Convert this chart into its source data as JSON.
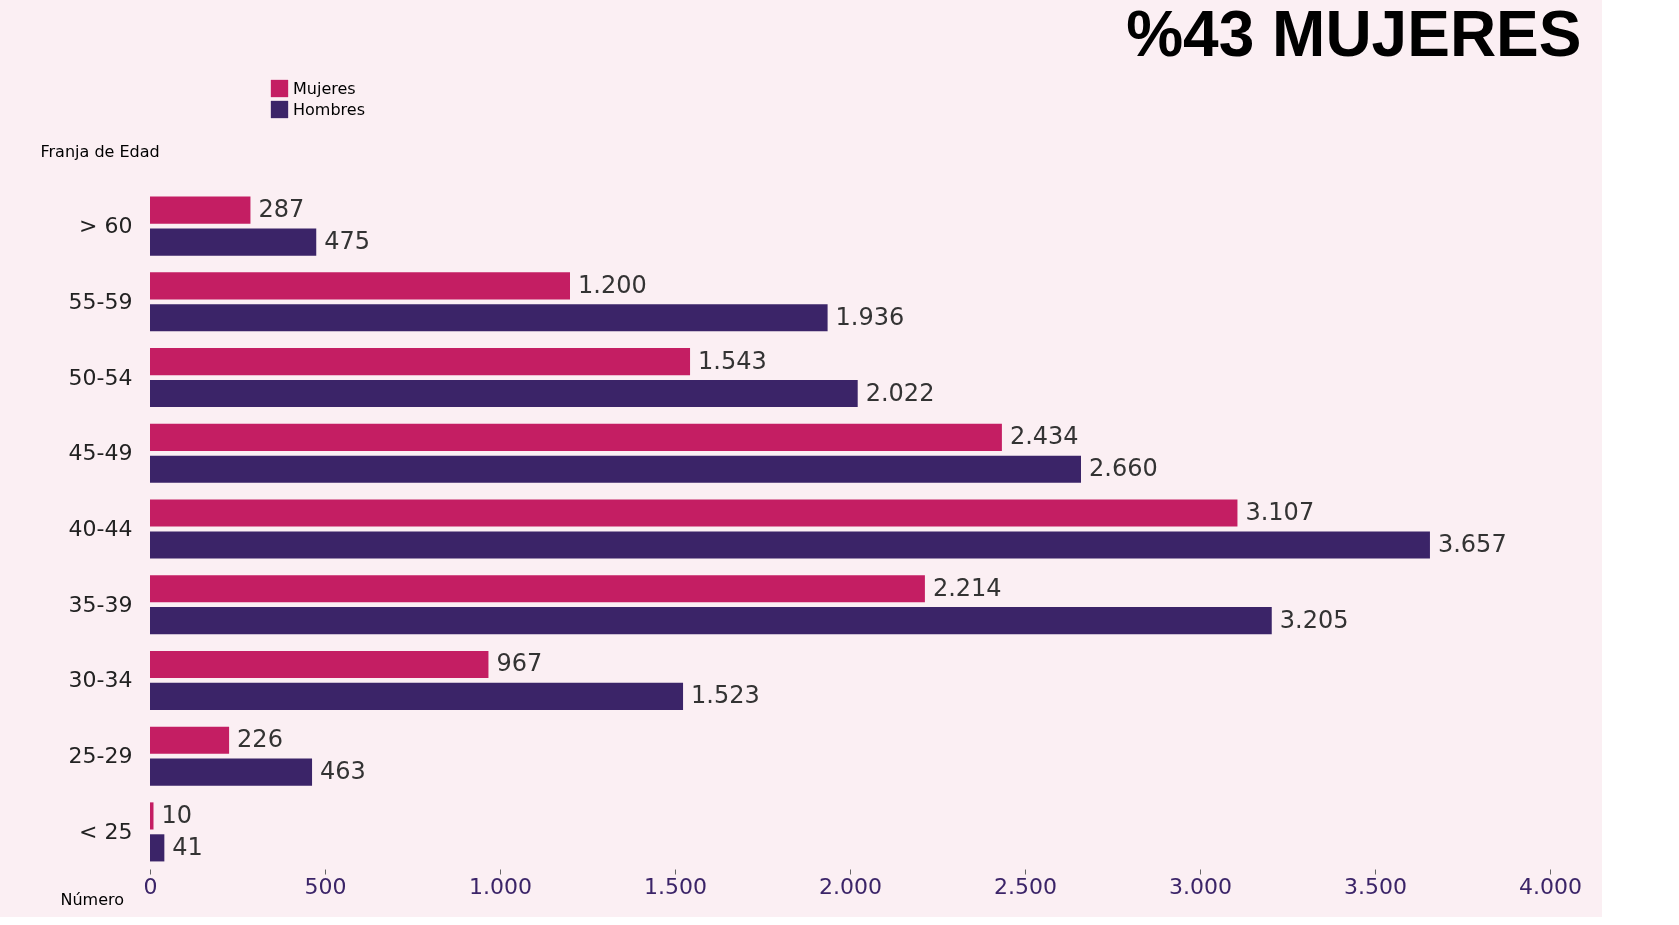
{
  "chart_data": {
    "type": "bar",
    "orientation": "horizontal",
    "title": "%43 MUJERES",
    "ylabel": "Franja de Edad",
    "xlabel": "Número",
    "categories": [
      "> 60",
      "55-59",
      "50-54",
      "45-49",
      "40-44",
      "35-39",
      "30-34",
      "25-29",
      "< 25"
    ],
    "series": [
      {
        "name": "Mujeres",
        "color": "#c41e63",
        "values": [
          287,
          1200,
          1543,
          2434,
          3107,
          2214,
          967,
          226,
          10
        ],
        "value_labels": [
          "287",
          "1.200",
          "1.543",
          "2.434",
          "3.107",
          "2.214",
          "967",
          "226",
          "10"
        ]
      },
      {
        "name": "Hombres",
        "color": "#3b2468",
        "values": [
          475,
          1936,
          2022,
          2660,
          3657,
          3205,
          1523,
          463,
          41
        ],
        "value_labels": [
          "475",
          "1.936",
          "2.022",
          "2.660",
          "3.657",
          "3.205",
          "1.523",
          "463",
          "41"
        ]
      }
    ],
    "xlim": [
      0,
      4000
    ],
    "xticks": [
      0,
      500,
      {
        "value": 1000,
        "label": "1.000"
      },
      {
        "value": 1500,
        "label": "1.500"
      },
      {
        "value": 2000,
        "label": "2.000"
      },
      {
        "value": 2500,
        "label": "2.500"
      },
      {
        "value": 3000,
        "label": "3.000"
      },
      {
        "value": 3500,
        "label": "3.500"
      },
      {
        "value": 4000,
        "label": "4.000"
      }
    ],
    "grid": false,
    "legend": "top left"
  }
}
